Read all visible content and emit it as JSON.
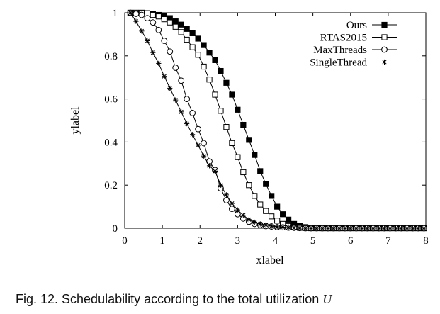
{
  "chart_data": {
    "type": "line",
    "title": "",
    "xlabel": "xlabel",
    "ylabel": "ylabel",
    "xlim": [
      0,
      8
    ],
    "ylim": [
      0,
      1
    ],
    "xticks": [
      "0",
      "1",
      "2",
      "3",
      "4",
      "5",
      "6",
      "7",
      "8"
    ],
    "yticks": [
      "0",
      "0.2",
      "0.4",
      "0.6",
      "0.8",
      "1"
    ],
    "grid": false,
    "legend_position": "top-right",
    "x": [
      0.15,
      0.3,
      0.45,
      0.6,
      0.75,
      0.9,
      1.05,
      1.2,
      1.35,
      1.5,
      1.65,
      1.8,
      1.95,
      2.1,
      2.25,
      2.4,
      2.55,
      2.7,
      2.85,
      3.0,
      3.15,
      3.3,
      3.45,
      3.6,
      3.75,
      3.9,
      4.05,
      4.2,
      4.35,
      4.5,
      4.65,
      4.8,
      4.95,
      5.1,
      5.25,
      5.4,
      5.55,
      5.7,
      5.85,
      6.0,
      6.15,
      6.3,
      6.45,
      6.6,
      6.75,
      6.9,
      7.05,
      7.2,
      7.35,
      7.5,
      7.65,
      7.8,
      7.95
    ],
    "series": [
      {
        "name": "Ours",
        "marker": "filled-square",
        "values": [
          1.0,
          1.0,
          1.0,
          0.998,
          0.995,
          0.99,
          0.985,
          0.975,
          0.96,
          0.945,
          0.925,
          0.905,
          0.88,
          0.85,
          0.815,
          0.78,
          0.73,
          0.675,
          0.62,
          0.55,
          0.48,
          0.41,
          0.34,
          0.265,
          0.205,
          0.15,
          0.1,
          0.065,
          0.04,
          0.02,
          0.01,
          0.005,
          0.002,
          0.001,
          0.0,
          0.0,
          0.0,
          0.0,
          0.0,
          0.0,
          0.0,
          0.0,
          0.0,
          0.0,
          0.0,
          0.0,
          0.0,
          0.0,
          0.0,
          0.0,
          0.0,
          0.0,
          0.0
        ]
      },
      {
        "name": "RTAS2015",
        "marker": "open-square",
        "values": [
          1.0,
          1.0,
          1.0,
          0.997,
          0.99,
          0.983,
          0.97,
          0.955,
          0.935,
          0.91,
          0.875,
          0.84,
          0.805,
          0.75,
          0.69,
          0.62,
          0.545,
          0.47,
          0.395,
          0.33,
          0.26,
          0.2,
          0.15,
          0.11,
          0.08,
          0.055,
          0.035,
          0.02,
          0.01,
          0.005,
          0.002,
          0.001,
          0.0,
          0.0,
          0.0,
          0.0,
          0.0,
          0.0,
          0.0,
          0.0,
          0.0,
          0.0,
          0.0,
          0.0,
          0.0,
          0.0,
          0.0,
          0.0,
          0.0,
          0.0,
          0.0,
          0.0,
          0.0
        ]
      },
      {
        "name": "MaxThreads",
        "marker": "open-circle",
        "values": [
          1.0,
          0.995,
          0.99,
          0.975,
          0.955,
          0.92,
          0.87,
          0.82,
          0.745,
          0.685,
          0.6,
          0.535,
          0.46,
          0.395,
          0.31,
          0.27,
          0.185,
          0.13,
          0.09,
          0.065,
          0.045,
          0.03,
          0.02,
          0.015,
          0.01,
          0.008,
          0.005,
          0.004,
          0.003,
          0.002,
          0.001,
          0.0,
          0.0,
          0.0,
          0.0,
          0.0,
          0.0,
          0.0,
          0.0,
          0.0,
          0.0,
          0.0,
          0.0,
          0.0,
          0.0,
          0.0,
          0.0,
          0.0,
          0.0,
          0.0,
          0.0,
          0.0,
          0.0
        ]
      },
      {
        "name": "SingleThread",
        "marker": "asterisk",
        "values": [
          1.0,
          0.96,
          0.915,
          0.87,
          0.815,
          0.765,
          0.705,
          0.65,
          0.595,
          0.54,
          0.485,
          0.435,
          0.385,
          0.335,
          0.29,
          0.265,
          0.2,
          0.155,
          0.115,
          0.085,
          0.06,
          0.04,
          0.028,
          0.02,
          0.015,
          0.01,
          0.007,
          0.005,
          0.003,
          0.002,
          0.001,
          0.0,
          0.0,
          0.0,
          0.0,
          0.0,
          0.0,
          0.0,
          0.0,
          0.0,
          0.0,
          0.0,
          0.0,
          0.0,
          0.0,
          0.0,
          0.0,
          0.0,
          0.0,
          0.0,
          0.0,
          0.0,
          0.0
        ]
      }
    ]
  },
  "caption": {
    "text": "Fig. 12. Schedulability according to the total utilization ",
    "math": "U"
  }
}
